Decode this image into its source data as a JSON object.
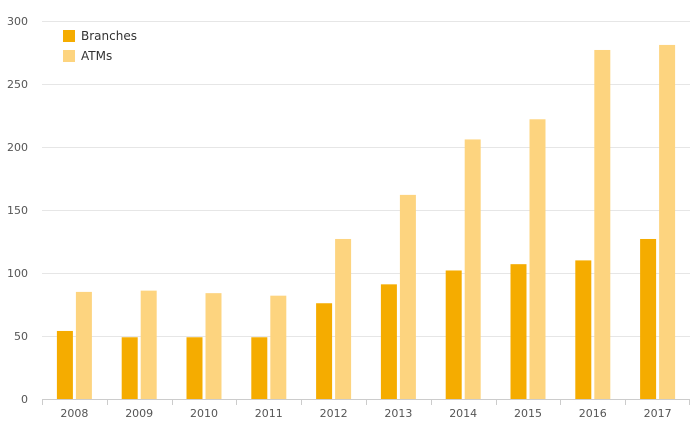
{
  "chart_data": {
    "type": "bar",
    "categories": [
      "2008",
      "2009",
      "2010",
      "2011",
      "2012",
      "2013",
      "2014",
      "2015",
      "2016",
      "2017"
    ],
    "series": [
      {
        "name": "Branches",
        "color": "#f5ac00",
        "values": [
          54,
          49,
          49,
          49,
          76,
          91,
          102,
          107,
          110,
          127
        ]
      },
      {
        "name": "ATMs",
        "color": "#fdd47f",
        "values": [
          85,
          86,
          84,
          82,
          127,
          162,
          206,
          222,
          277,
          281
        ]
      }
    ],
    "ylim": [
      0,
      300
    ],
    "yticks": [
      0,
      50,
      100,
      150,
      200,
      250,
      300
    ],
    "ytick_labels": [
      "0",
      "50",
      "100",
      "150",
      "200",
      "250",
      "300"
    ],
    "grid": true,
    "legend_position": "top-left",
    "title": "",
    "xlabel": "",
    "ylabel": ""
  }
}
